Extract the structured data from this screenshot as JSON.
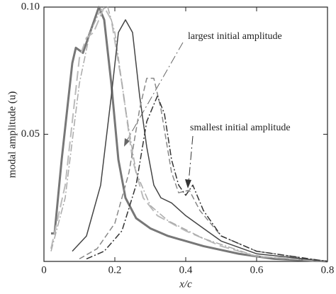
{
  "chart_data": {
    "type": "line",
    "xlabel": "x/c",
    "ylabel": "modal amplitude (u)",
    "xlim": [
      0,
      0.8
    ],
    "ylim": [
      0,
      0.1
    ],
    "xticks": [
      0,
      0.2,
      0.4,
      0.6,
      0.8
    ],
    "yticks": [
      0.05,
      {
        "value": 0.1,
        "label": "0.10"
      }
    ],
    "annotations": [
      "largest initial amplitude",
      "smallest initial amplitude"
    ],
    "series": [
      {
        "color": "#777",
        "dash": "",
        "width": 3,
        "x": [
          0.02,
          0.03,
          0.05,
          0.08,
          0.09,
          0.11,
          0.13,
          0.155,
          0.17,
          0.19,
          0.21,
          0.23,
          0.26,
          0.3,
          0.35,
          0.45,
          0.55,
          0.65,
          0.8
        ],
        "values": [
          0.011,
          0.011,
          0.04,
          0.078,
          0.084,
          0.082,
          0.09,
          0.1,
          0.095,
          0.07,
          0.04,
          0.025,
          0.017,
          0.013,
          0.01,
          0.006,
          0.003,
          0.001,
          0
        ]
      },
      {
        "color": "#bbb",
        "dash": "14 6",
        "width": 2,
        "x": [
          0.02,
          0.06,
          0.1,
          0.12,
          0.14,
          0.17,
          0.19,
          0.22,
          0.25,
          0.28,
          0.32,
          0.4,
          0.5,
          0.6,
          0.8
        ],
        "values": [
          0.005,
          0.03,
          0.08,
          0.088,
          0.09,
          0.1,
          0.095,
          0.07,
          0.04,
          0.025,
          0.018,
          0.012,
          0.006,
          0.002,
          0
        ]
      },
      {
        "color": "#aaa",
        "dash": "10 3 2 3",
        "width": 1.5,
        "x": [
          0.02,
          0.06,
          0.1,
          0.13,
          0.16,
          0.18,
          0.2,
          0.23,
          0.26,
          0.3,
          0.35,
          0.45,
          0.6,
          0.8
        ],
        "values": [
          0.004,
          0.025,
          0.07,
          0.09,
          0.099,
          0.1,
          0.09,
          0.06,
          0.035,
          0.022,
          0.016,
          0.009,
          0.002,
          0
        ]
      },
      {
        "color": "#444",
        "dash": "",
        "width": 1.5,
        "x": [
          0.08,
          0.12,
          0.16,
          0.19,
          0.21,
          0.23,
          0.25,
          0.27,
          0.29,
          0.31,
          0.33,
          0.36,
          0.4,
          0.45,
          0.5,
          0.6,
          0.8
        ],
        "values": [
          0.004,
          0.01,
          0.03,
          0.065,
          0.09,
          0.095,
          0.09,
          0.065,
          0.045,
          0.03,
          0.025,
          0.023,
          0.018,
          0.013,
          0.008,
          0.003,
          0
        ]
      },
      {
        "color": "#888",
        "dash": "8 4",
        "width": 1.5,
        "x": [
          0.1,
          0.15,
          0.2,
          0.24,
          0.27,
          0.29,
          0.31,
          0.33,
          0.36,
          0.38,
          0.41,
          0.44,
          0.5,
          0.6,
          0.8
        ],
        "values": [
          0.001,
          0.005,
          0.015,
          0.035,
          0.06,
          0.072,
          0.072,
          0.06,
          0.035,
          0.027,
          0.028,
          0.02,
          0.01,
          0.004,
          0
        ]
      },
      {
        "color": "#333",
        "dash": "9 3 2 3",
        "width": 1.5,
        "x": [
          0.12,
          0.17,
          0.22,
          0.26,
          0.29,
          0.32,
          0.34,
          0.36,
          0.38,
          0.4,
          0.42,
          0.45,
          0.5,
          0.6,
          0.8
        ],
        "values": [
          0.001,
          0.004,
          0.012,
          0.03,
          0.055,
          0.065,
          0.058,
          0.04,
          0.03,
          0.026,
          0.03,
          0.02,
          0.01,
          0.004,
          0
        ]
      }
    ]
  }
}
